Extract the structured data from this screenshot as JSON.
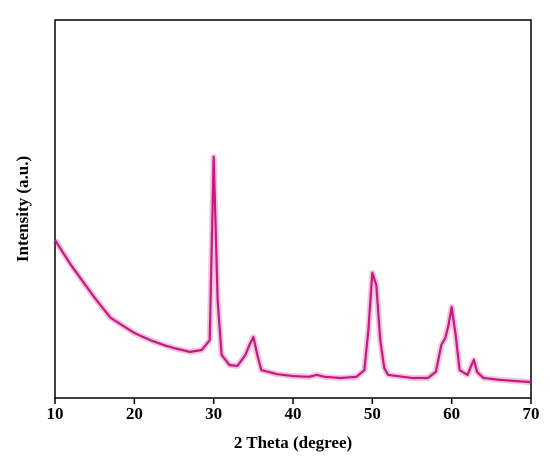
{
  "chart_data": {
    "type": "line",
    "x_label": "2 Theta (degree)",
    "y_label": "Intensity (a.u.)",
    "xlim": [
      10,
      70
    ],
    "xticks": [
      10,
      20,
      30,
      40,
      50,
      60,
      70
    ],
    "ylim": [
      0,
      100
    ],
    "series": [
      {
        "color": "#c8197e",
        "x": [
          10,
          12,
          15,
          17,
          20,
          22,
          24,
          25,
          27,
          28.5,
          29.5,
          30,
          30.5,
          31,
          32,
          33,
          34,
          34.5,
          35,
          35.5,
          36,
          38,
          40,
          42,
          43,
          44,
          46,
          48,
          49,
          49.5,
          50,
          50.5,
          51,
          51.5,
          52,
          55,
          57,
          58,
          58.7,
          59.2,
          59.6,
          60,
          60.5,
          61,
          62,
          62.5,
          62.8,
          63.2,
          64,
          66,
          68,
          70
        ],
        "values": [
          41.8,
          35.2,
          26.5,
          21.2,
          17.2,
          15.3,
          13.8,
          13.2,
          12.2,
          12.7,
          15.3,
          63.8,
          25.9,
          11.4,
          8.7,
          8.5,
          11.4,
          14.0,
          16.1,
          11.4,
          7.4,
          6.3,
          5.8,
          5.6,
          6.1,
          5.6,
          5.3,
          5.6,
          7.4,
          18.0,
          33.1,
          29.9,
          15.3,
          7.9,
          6.1,
          5.3,
          5.3,
          6.9,
          14.0,
          15.9,
          19.3,
          24.1,
          16.7,
          7.4,
          6.1,
          8.7,
          10.1,
          6.9,
          5.3,
          4.8,
          4.5,
          4.2
        ]
      }
    ]
  }
}
